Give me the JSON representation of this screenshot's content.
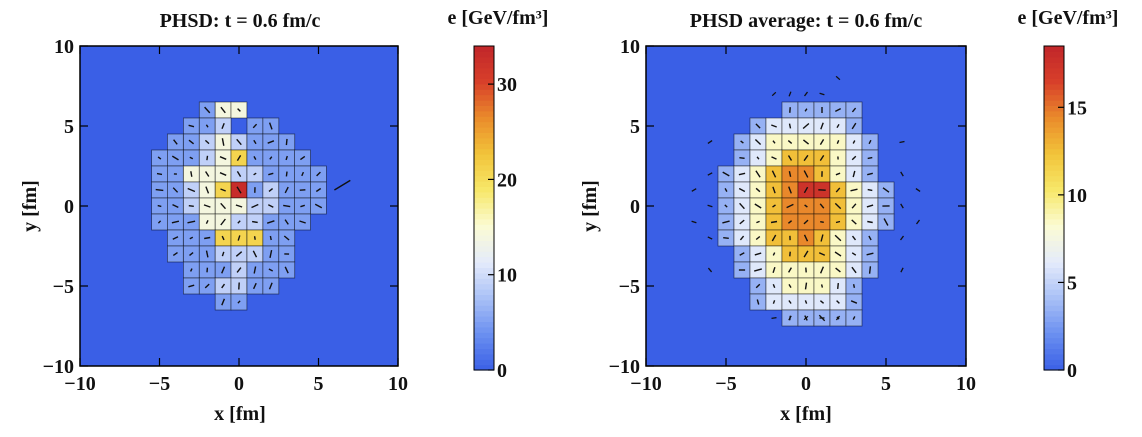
{
  "colors": {
    "background": "#3a5fe6",
    "colormap": [
      "#3a5fe6",
      "#6a8ff0",
      "#a9c0f6",
      "#e4ebfb",
      "#fbfbd4",
      "#f7e86a",
      "#f2c43a",
      "#ea8c2b",
      "#d8402a",
      "#c1262a"
    ]
  },
  "chart_data": [
    {
      "type": "heatmap",
      "title": "PHSD: t = 0.6 fm/c",
      "xlabel": "x [fm]",
      "ylabel": "y [fm]",
      "xlim": [
        -10,
        10
      ],
      "ylim": [
        -10,
        10
      ],
      "x_ticks": [
        -10,
        -5,
        0,
        5,
        10
      ],
      "y_ticks": [
        -10,
        -5,
        0,
        5,
        10
      ],
      "x_tick_labels": [
        "−10",
        "−5",
        "0",
        "5",
        "10"
      ],
      "y_tick_labels": [
        "−10",
        "−5",
        "0",
        "5",
        "10"
      ],
      "cell_size_fm": 1,
      "colorbar": {
        "label": "e [GeV/fm³]",
        "range": [
          0,
          34
        ],
        "ticks": [
          0,
          10,
          20,
          30
        ],
        "tick_labels": [
          "0",
          "10",
          "20",
          "30"
        ]
      },
      "grid_rows_top_to_bottom": [
        "...SWW.....",
        "..SSL.SS...",
        ".SSLWLSSS..",
        "SSSLWYSSSS.",
        "SSWWWLLSSSS",
        "SSLWYRSLSSS",
        "SSLWWWLLSSS",
        "SSSWWLLSSS.",
        ".SSSYYYSS..",
        ".SSSLLLSS..",
        "..SSSLSSS..",
        "..SSLLSS...",
        "....SS....."
      ],
      "grid_x_start": -5,
      "grid_y_top": 6,
      "code_values": {
        "S": 5,
        "L": 9,
        "W": 14,
        "Y": 21,
        "R": 33
      },
      "flow_arrows": "short velocity arrows drawn in each cell",
      "outliers": [
        {
          "x": 6,
          "y": 1,
          "dx": 1.0,
          "dy": 0.6
        }
      ]
    },
    {
      "type": "heatmap",
      "title": "PHSD average: t = 0.6 fm/c",
      "xlabel": "x [fm]",
      "ylabel": "y [fm]",
      "xlim": [
        -10,
        10
      ],
      "ylim": [
        -10,
        10
      ],
      "x_ticks": [
        -10,
        -5,
        0,
        5,
        10
      ],
      "y_ticks": [
        -10,
        -5,
        0,
        5,
        10
      ],
      "x_tick_labels": [
        "−10",
        "−5",
        "0",
        "5",
        "10"
      ],
      "y_tick_labels": [
        "−10",
        "−5",
        "0",
        "5",
        "10"
      ],
      "cell_size_fm": 1,
      "colorbar": {
        "label": "e [GeV/fm³]",
        "range": [
          0,
          18.5
        ],
        "ticks": [
          0,
          5,
          10,
          15
        ],
        "tick_labels": [
          "0",
          "5",
          "10",
          "15"
        ]
      },
      "grid_rows_top_to_bottom": [
        "..SSSSS..",
        ".SLLLLLS.",
        "SLWWWWWLS",
        "SLWYYYWLS",
        "SLWYOOYWLS",
        "SLWYORRYWLS",
        "SLWYOOOYWLS",
        "SLWYOOOYWLS",
        "SLWYYOYWLS",
        "SLWYYYWLS",
        "SLWWWWWLS",
        ".SLWWWLS.",
        ".SLLLLLS.",
        "..SSSSS.."
      ],
      "grid_row_x_start": [
        -3,
        -4,
        -4,
        -4,
        -5,
        -5,
        -5,
        -5,
        -5,
        -4,
        -4,
        -4,
        -4,
        -3
      ],
      "grid_y_top": 6,
      "code_values": {
        "S": 3.5,
        "L": 6,
        "W": 8.5,
        "Y": 12.5,
        "O": 14.5,
        "R": 17.5
      },
      "flow_arrows": "short velocity arrows drawn in each cell",
      "outer_ticks": [
        {
          "x": -6,
          "y": 4
        },
        {
          "x": 6,
          "y": 4
        },
        {
          "x": -6,
          "y": 2
        },
        {
          "x": 6,
          "y": 2
        },
        {
          "x": -6,
          "y": 0
        },
        {
          "x": 6,
          "y": 0
        },
        {
          "x": -6,
          "y": -2
        },
        {
          "x": 6,
          "y": -2
        },
        {
          "x": -6,
          "y": -4
        },
        {
          "x": 6,
          "y": -4
        },
        {
          "x": -7,
          "y": 1
        },
        {
          "x": 7,
          "y": 1
        },
        {
          "x": -7,
          "y": -1
        },
        {
          "x": 7,
          "y": -1
        },
        {
          "x": -1,
          "y": -7
        },
        {
          "x": 0,
          "y": -7
        },
        {
          "x": 1,
          "y": -7
        },
        {
          "x": -2,
          "y": -7
        },
        {
          "x": 2,
          "y": -7
        },
        {
          "x": -1,
          "y": 7
        },
        {
          "x": 0,
          "y": 7
        },
        {
          "x": 1,
          "y": 7
        },
        {
          "x": 2,
          "y": 8
        },
        {
          "x": -2,
          "y": 7
        }
      ]
    }
  ]
}
